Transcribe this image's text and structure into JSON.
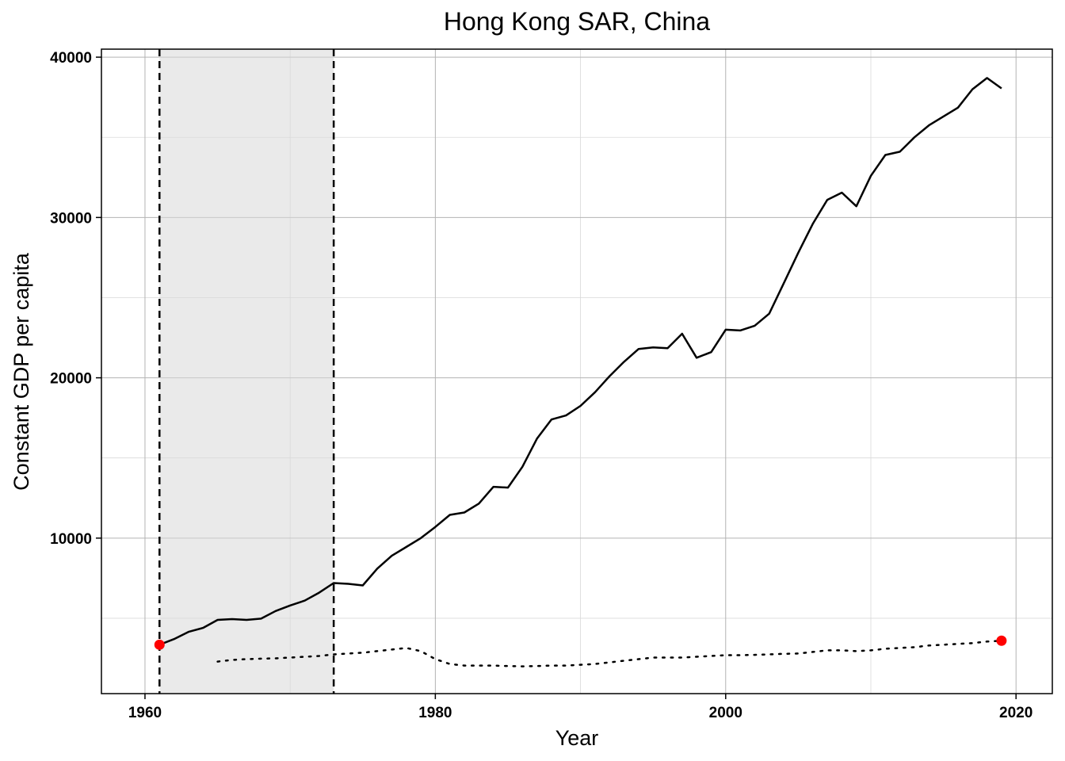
{
  "chart_data": {
    "type": "line",
    "title": "Hong Kong SAR, China",
    "xlabel": "Year",
    "ylabel": "Constant GDP per capita",
    "xlim": [
      1957,
      2022.5
    ],
    "ylim": [
      300,
      40500
    ],
    "x_ticks": [
      1960,
      1980,
      2000,
      2020
    ],
    "y_ticks": [
      10000,
      20000,
      30000,
      40000
    ],
    "grid": true,
    "shaded_period": {
      "start": 1961,
      "end": 1973
    },
    "series": [
      {
        "style": "solid",
        "color": "#000000",
        "x": [
          1961,
          1962,
          1963,
          1964,
          1965,
          1966,
          1967,
          1968,
          1969,
          1970,
          1971,
          1972,
          1973,
          1974,
          1975,
          1976,
          1977,
          1978,
          1979,
          1980,
          1981,
          1982,
          1983,
          1984,
          1985,
          1986,
          1987,
          1988,
          1989,
          1990,
          1991,
          1992,
          1993,
          1994,
          1995,
          1996,
          1997,
          1998,
          1999,
          2000,
          2001,
          2002,
          2003,
          2004,
          2005,
          2006,
          2007,
          2008,
          2009,
          2010,
          2011,
          2012,
          2013,
          2014,
          2015,
          2016,
          2017,
          2018,
          2019
        ],
        "values": [
          3350,
          3700,
          4150,
          4400,
          4900,
          4950,
          4900,
          4980,
          5450,
          5800,
          6100,
          6600,
          7200,
          7150,
          7050,
          8100,
          8900,
          9450,
          10000,
          10700,
          11450,
          11600,
          12150,
          13200,
          13150,
          14450,
          16200,
          17400,
          17650,
          18250,
          19100,
          20100,
          21000,
          21800,
          21900,
          21850,
          22750,
          21250,
          21600,
          23000,
          22950,
          23250,
          24000,
          25900,
          27800,
          29600,
          31100,
          31550,
          30700,
          32600,
          33900,
          34100,
          35000,
          35750,
          36300,
          36850,
          38000,
          38700,
          38050
        ]
      },
      {
        "style": "dotted",
        "color": "#000000",
        "x": [
          1965,
          1966,
          1967,
          1968,
          1969,
          1970,
          1971,
          1972,
          1973,
          1974,
          1975,
          1976,
          1977,
          1978,
          1979,
          1980,
          1981,
          1982,
          1983,
          1984,
          1985,
          1986,
          1987,
          1988,
          1989,
          1990,
          1991,
          1992,
          1993,
          1994,
          1995,
          1996,
          1997,
          1998,
          1999,
          2000,
          2001,
          2002,
          2003,
          2004,
          2005,
          2006,
          2007,
          2008,
          2009,
          2010,
          2011,
          2012,
          2013,
          2014,
          2015,
          2016,
          2017,
          2018,
          2019
        ],
        "values": [
          2300,
          2400,
          2450,
          2480,
          2500,
          2550,
          2600,
          2650,
          2750,
          2800,
          2850,
          2950,
          3050,
          3150,
          2950,
          2450,
          2150,
          2050,
          2050,
          2050,
          2020,
          2000,
          2020,
          2050,
          2050,
          2100,
          2150,
          2250,
          2350,
          2450,
          2550,
          2550,
          2550,
          2600,
          2650,
          2700,
          2700,
          2720,
          2750,
          2780,
          2800,
          2900,
          3000,
          3000,
          2950,
          3000,
          3100,
          3150,
          3200,
          3300,
          3350,
          3400,
          3450,
          3550,
          3600
        ]
      }
    ],
    "highlight_points": [
      {
        "x": 1961,
        "y": 3350,
        "color": "#ff0000"
      },
      {
        "x": 2019,
        "y": 3600,
        "color": "#ff0000"
      }
    ]
  }
}
